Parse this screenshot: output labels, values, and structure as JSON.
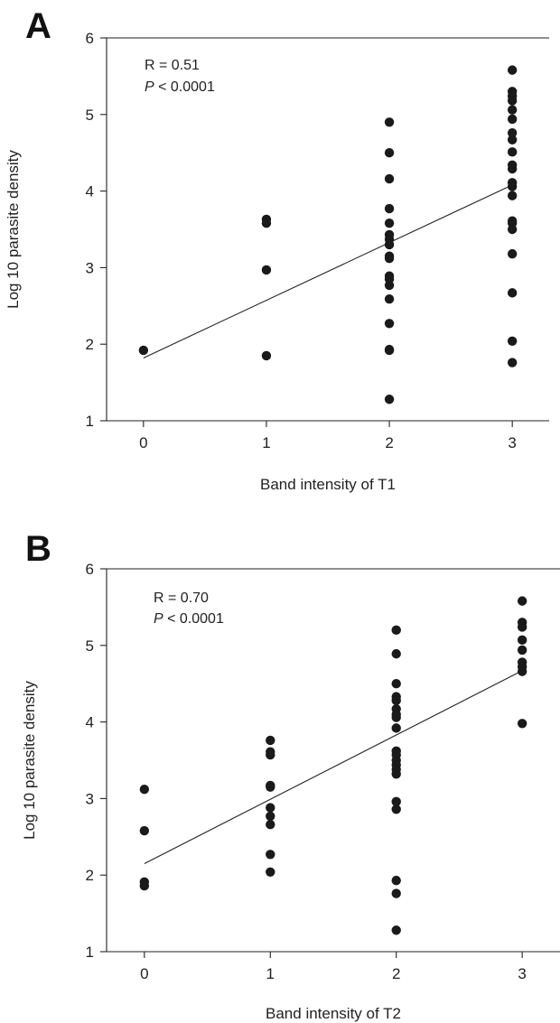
{
  "chart_data": [
    {
      "type": "scatter",
      "panel_label": "A",
      "xlabel": "Band intensity of T1",
      "ylabel": "Log 10 parasite density",
      "xlim": [
        -0.3,
        3.3
      ],
      "ylim": [
        1,
        6
      ],
      "x_ticks": [
        0,
        1,
        2,
        3
      ],
      "y_ticks": [
        1,
        2,
        3,
        4,
        5,
        6
      ],
      "annotation": {
        "r_text": "R = 0.51",
        "p_letter": "P",
        "p_rest": " < 0.0001"
      },
      "fit_line": {
        "x": [
          0,
          3
        ],
        "y": [
          1.82,
          4.08
        ]
      },
      "points": [
        [
          0,
          1.92
        ],
        [
          1,
          3.63
        ],
        [
          1,
          3.58
        ],
        [
          1,
          2.97
        ],
        [
          1,
          1.85
        ],
        [
          2,
          4.9
        ],
        [
          2,
          4.5
        ],
        [
          2,
          4.16
        ],
        [
          2,
          3.77
        ],
        [
          2,
          3.58
        ],
        [
          2,
          3.43
        ],
        [
          2,
          3.37
        ],
        [
          2,
          3.3
        ],
        [
          2,
          3.15
        ],
        [
          2,
          3.12
        ],
        [
          2,
          2.89
        ],
        [
          2,
          2.85
        ],
        [
          2,
          2.77
        ],
        [
          2,
          2.59
        ],
        [
          2,
          2.27
        ],
        [
          2,
          1.93
        ],
        [
          2,
          1.92
        ],
        [
          2,
          1.28
        ],
        [
          3,
          5.58
        ],
        [
          3,
          5.3
        ],
        [
          3,
          5.24
        ],
        [
          3,
          5.18
        ],
        [
          3,
          5.06
        ],
        [
          3,
          4.94
        ],
        [
          3,
          4.76
        ],
        [
          3,
          4.67
        ],
        [
          3,
          4.51
        ],
        [
          3,
          4.34
        ],
        [
          3,
          4.29
        ],
        [
          3,
          4.11
        ],
        [
          3,
          4.06
        ],
        [
          3,
          3.94
        ],
        [
          3,
          3.61
        ],
        [
          3,
          3.58
        ],
        [
          3,
          3.5
        ],
        [
          3,
          3.18
        ],
        [
          3,
          2.67
        ],
        [
          3,
          2.04
        ],
        [
          3,
          1.76
        ]
      ]
    },
    {
      "type": "scatter",
      "panel_label": "B",
      "xlabel": "Band intensity of T2",
      "ylabel": "Log 10 parasite density",
      "xlim": [
        -0.3,
        3.3
      ],
      "ylim": [
        1,
        6
      ],
      "x_ticks": [
        0,
        1,
        2,
        3
      ],
      "y_ticks": [
        1,
        2,
        3,
        4,
        5,
        6
      ],
      "annotation": {
        "r_text": "R = 0.70",
        "p_letter": "P",
        "p_rest": " < 0.0001"
      },
      "fit_line": {
        "x": [
          0,
          3
        ],
        "y": [
          2.15,
          4.67
        ]
      },
      "points": [
        [
          0,
          3.12
        ],
        [
          0,
          2.58
        ],
        [
          0,
          1.91
        ],
        [
          0,
          1.86
        ],
        [
          1,
          3.76
        ],
        [
          1,
          3.61
        ],
        [
          1,
          3.57
        ],
        [
          1,
          3.17
        ],
        [
          1,
          3.15
        ],
        [
          1,
          2.88
        ],
        [
          1,
          2.77
        ],
        [
          1,
          2.66
        ],
        [
          1,
          2.27
        ],
        [
          1,
          2.04
        ],
        [
          2,
          5.2
        ],
        [
          2,
          4.89
        ],
        [
          2,
          4.5
        ],
        [
          2,
          4.33
        ],
        [
          2,
          4.28
        ],
        [
          2,
          4.17
        ],
        [
          2,
          4.1
        ],
        [
          2,
          4.06
        ],
        [
          2,
          3.92
        ],
        [
          2,
          3.62
        ],
        [
          2,
          3.57
        ],
        [
          2,
          3.5
        ],
        [
          2,
          3.44
        ],
        [
          2,
          3.38
        ],
        [
          2,
          3.32
        ],
        [
          2,
          2.96
        ],
        [
          2,
          2.86
        ],
        [
          2,
          1.93
        ],
        [
          2,
          1.76
        ],
        [
          2,
          1.28
        ],
        [
          3,
          5.58
        ],
        [
          3,
          5.3
        ],
        [
          3,
          5.24
        ],
        [
          3,
          5.07
        ],
        [
          3,
          4.94
        ],
        [
          3,
          4.78
        ],
        [
          3,
          4.72
        ],
        [
          3,
          4.66
        ],
        [
          3,
          3.98
        ]
      ]
    }
  ]
}
